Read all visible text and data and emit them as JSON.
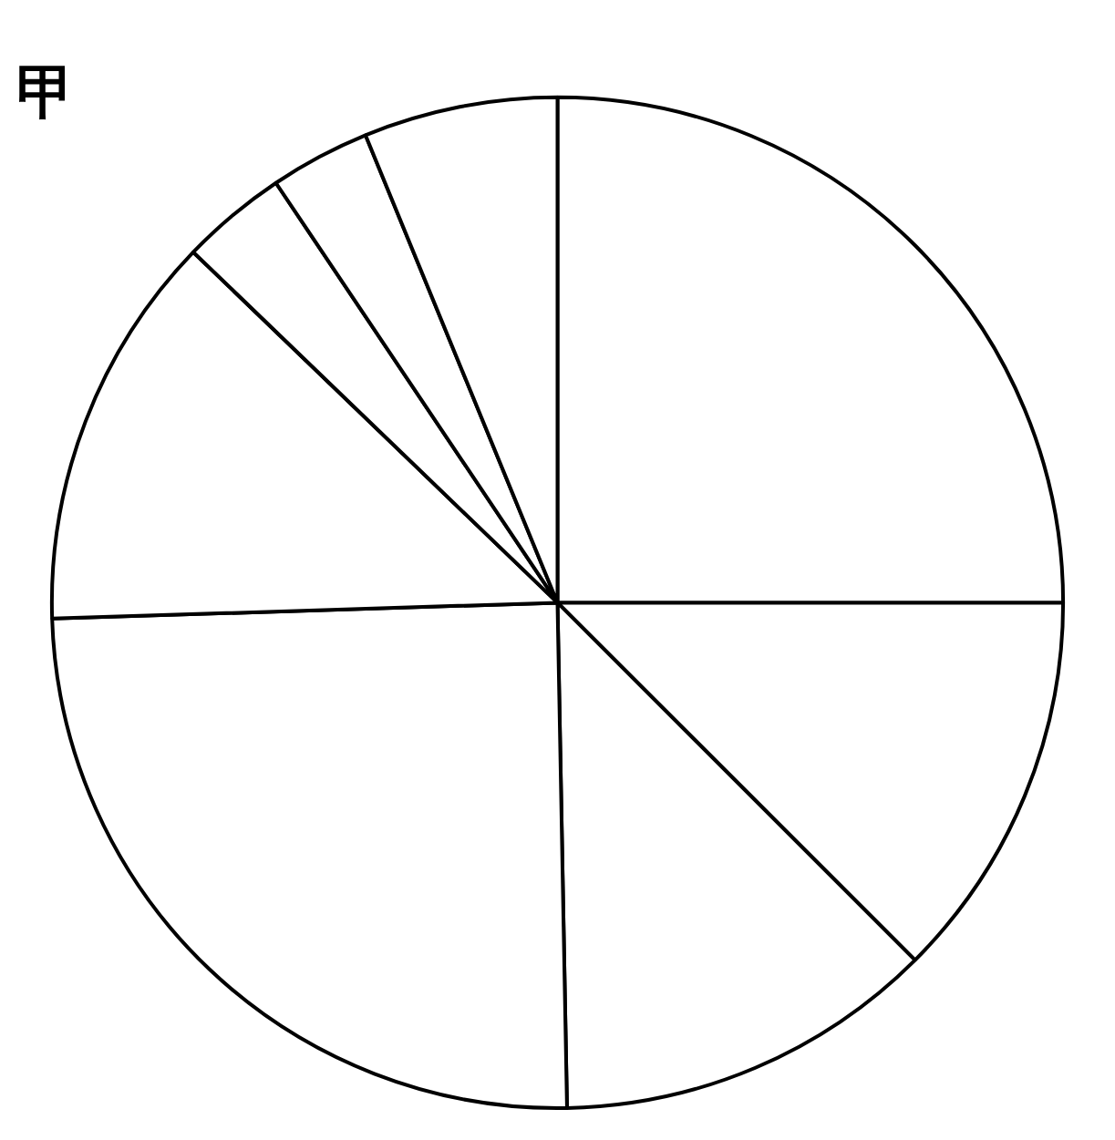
{
  "chart_data": {
    "type": "pie",
    "title": "甲",
    "categories": [
      null,
      null,
      null,
      null,
      null,
      null,
      null,
      null
    ],
    "values": [
      25,
      12.5,
      12.2,
      24.8,
      12.7,
      3.4,
      3.2,
      6.2
    ],
    "colors": [
      "#ffffff",
      "#ffffff",
      "#ffffff",
      "#ffffff",
      "#ffffff",
      "#ffffff",
      "#ffffff",
      "#ffffff"
    ],
    "legend": false
  }
}
